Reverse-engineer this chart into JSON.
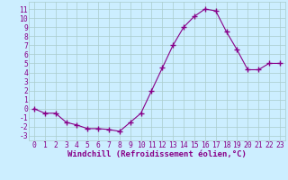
{
  "x": [
    0,
    1,
    2,
    3,
    4,
    5,
    6,
    7,
    8,
    9,
    10,
    11,
    12,
    13,
    14,
    15,
    16,
    17,
    18,
    19,
    20,
    21,
    22,
    23
  ],
  "y": [
    0,
    -0.5,
    -0.5,
    -1.5,
    -1.8,
    -2.2,
    -2.2,
    -2.3,
    -2.5,
    -1.5,
    -0.5,
    2,
    4.5,
    7,
    9,
    10.2,
    11,
    10.8,
    8.5,
    6.5,
    4.3,
    4.3,
    5,
    5
  ],
  "line_color": "#880088",
  "marker": "+",
  "marker_size": 4,
  "bg_color": "#cceeff",
  "grid_color": "#aacccc",
  "xlabel": "Windchill (Refroidissement éolien,°C)",
  "xlabel_fontsize": 6.5,
  "tick_fontsize": 5.8,
  "ylim": [
    -3.5,
    11.8
  ],
  "xlim": [
    -0.5,
    23.5
  ],
  "yticks": [
    -3,
    -2,
    -1,
    0,
    1,
    2,
    3,
    4,
    5,
    6,
    7,
    8,
    9,
    10,
    11
  ],
  "xticks": [
    0,
    1,
    2,
    3,
    4,
    5,
    6,
    7,
    8,
    9,
    10,
    11,
    12,
    13,
    14,
    15,
    16,
    17,
    18,
    19,
    20,
    21,
    22,
    23
  ]
}
